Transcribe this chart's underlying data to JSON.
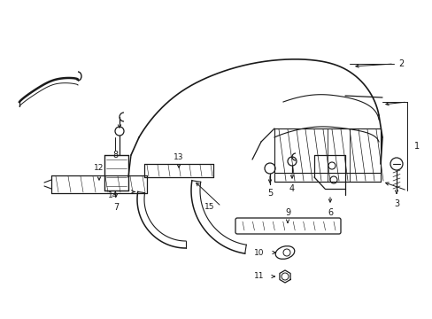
{
  "background_color": "#ffffff",
  "line_color": "#1a1a1a",
  "fig_width": 4.89,
  "fig_height": 3.6,
  "dpi": 100,
  "label_fontsize": 7.0,
  "label_fontsize_sm": 6.5
}
